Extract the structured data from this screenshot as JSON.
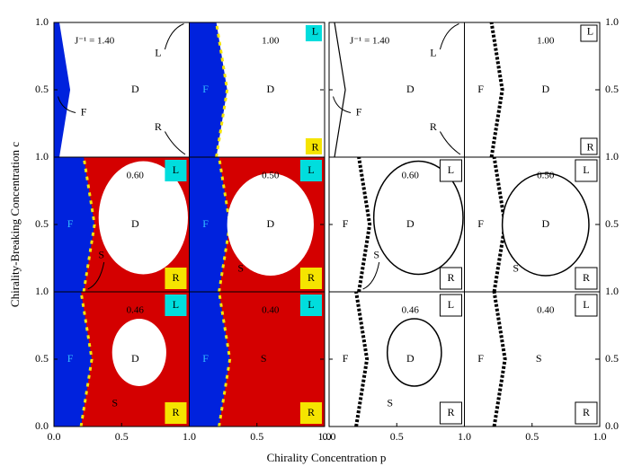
{
  "chart_data": {
    "type": "phase-diagram",
    "x_label": "Chirality Concentration p",
    "y_label": "Chirality-Breaking Concentration c",
    "xlim": [
      0,
      1
    ],
    "ylim": [
      0,
      1
    ],
    "xticks": [
      {
        "value": 0,
        "label": "0.0"
      },
      0.5,
      {
        "value": 1,
        "label": "1.0"
      }
    ],
    "yticks": [
      {
        "value": 0,
        "label": "0.0"
      },
      0.5,
      {
        "value": 1,
        "label": "1.0"
      }
    ],
    "panels": [
      {
        "label": "J⁻¹ = 1.40",
        "regions": [
          "D",
          "F",
          "L",
          "R"
        ]
      },
      {
        "label": "1.00",
        "regions": [
          "D",
          "F",
          "L",
          "R"
        ]
      },
      {
        "label": "0.60",
        "regions": [
          "D",
          "F",
          "S",
          "L",
          "R"
        ]
      },
      {
        "label": "0.50",
        "regions": [
          "D",
          "F",
          "S",
          "L",
          "R"
        ]
      },
      {
        "label": "0.46",
        "regions": [
          "D",
          "F",
          "S",
          "L",
          "R"
        ]
      },
      {
        "label": "0.40",
        "regions": [
          "S",
          "F",
          "L",
          "R"
        ]
      }
    ]
  }
}
